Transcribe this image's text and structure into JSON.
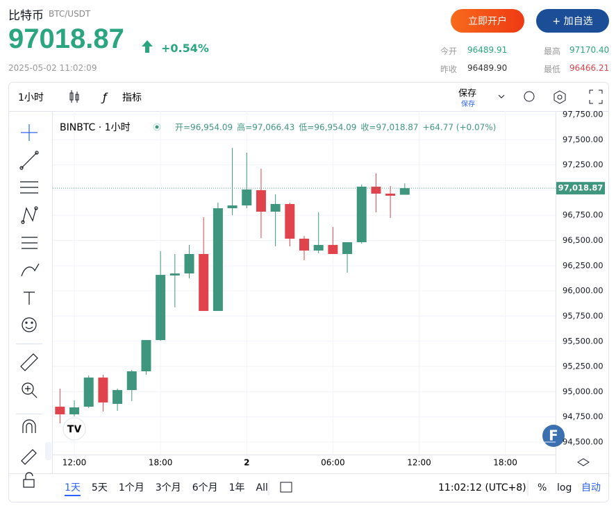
{
  "header": {
    "name": "比特币",
    "pair": "BTC/USDT",
    "price": "97018.87",
    "change": "+0.54%",
    "time": "2025-05-02 11:02:09",
    "btn_open": "立即开户",
    "btn_watch": "+ 加自选",
    "stats": [
      [
        "今开",
        "96489.91"
      ],
      [
        "最高",
        "97170.40"
      ],
      [
        "昨收",
        "96489.90"
      ],
      [
        "最低",
        "96466.21"
      ]
    ]
  },
  "toolbar": {
    "interval": "1小时",
    "indicators": "指标",
    "save": "保存",
    "save_sub": "保存"
  },
  "legend": {
    "symbol": "BINBTC · 1小时",
    "open": "开=96,954.09",
    "high": "高=97,066.43",
    "low": "低=96,954.09",
    "close": "收=97,018.87",
    "change": "+64.77 (+0.07%)"
  },
  "bottom": {
    "ranges": [
      "1天",
      "5天",
      "1个月",
      "3个月",
      "6个月",
      "1年",
      "All"
    ],
    "clock": "11:02:12 (UTC+8)",
    "pct": "%",
    "log": "log",
    "auto": "自动"
  },
  "chart_data": {
    "type": "candlestick",
    "categories": [
      null,
      "12:00",
      null,
      null,
      null,
      null,
      null,
      "18:00",
      null,
      null,
      null,
      null,
      null,
      "2",
      null,
      null,
      null,
      null,
      null,
      "06:00",
      null,
      null,
      null,
      null,
      null,
      "12:00",
      null,
      null,
      null,
      null,
      null,
      "18:00",
      null,
      null,
      null
    ],
    "open": [
      94851,
      94775,
      94851,
      95140,
      94879,
      95016,
      95202,
      95512,
      96153,
      96173,
      96366,
      95801,
      96820,
      96848,
      96999,
      96786,
      96862,
      96518,
      96400,
      96456,
      96366,
      96483,
      97034,
      96965,
      96954.09,
      null,
      null,
      null,
      null,
      null,
      null,
      null,
      null,
      null,
      null
    ],
    "high": [
      95030,
      94913,
      95161,
      95168,
      95030,
      95216,
      95512,
      96394,
      96366,
      96456,
      96731,
      96876,
      97419,
      97371,
      97213,
      96958,
      96876,
      96545,
      96779,
      96635,
      96483,
      97055,
      97165,
      97041,
      97066.43,
      null,
      null,
      null,
      null,
      null,
      null,
      null,
      null,
      null,
      null
    ],
    "low": [
      94686,
      94755,
      94837,
      94803,
      94810,
      94906,
      95168,
      95505,
      95836,
      96125,
      95801,
      95801,
      96752,
      96820,
      96524,
      96442,
      96442,
      96304,
      96373,
      96366,
      96180,
      96469,
      96779,
      96724,
      96954.09,
      null,
      null,
      null,
      null,
      null,
      null,
      null,
      null,
      null,
      null
    ],
    "close": [
      94775,
      94844,
      95140,
      94893,
      95016,
      95202,
      95512,
      96159,
      96173,
      96366,
      95801,
      96820,
      96848,
      97006,
      96786,
      96862,
      96518,
      96400,
      96456,
      96366,
      96483,
      97034,
      96965,
      96944,
      97018.87,
      null,
      null,
      null,
      null,
      null,
      null,
      null,
      null,
      null,
      null
    ],
    "up_color": "#3f967f",
    "down_color": "#e0434c",
    "last_label": "97,018.87",
    "ylim": [
      94500,
      97750
    ],
    "yticks": [
      {
        "value": 94500,
        "label": "94,500.00"
      },
      {
        "value": 94750,
        "label": "94,750.00"
      },
      {
        "value": 95000,
        "label": "95,000.00"
      },
      {
        "value": 95250,
        "label": "95,250.00"
      },
      {
        "value": 95500,
        "label": "95,500.00"
      },
      {
        "value": 95750,
        "label": "95,750.00"
      },
      {
        "value": 96000,
        "label": "96,000.00"
      },
      {
        "value": 96250,
        "label": "96,250.00"
      },
      {
        "value": 96500,
        "label": "96,500.00"
      },
      {
        "value": 96750,
        "label": "96,750.00"
      },
      {
        "value": 97000,
        "label": "97,000.00"
      },
      {
        "value": 97250,
        "label": "97,250.00"
      },
      {
        "value": 97500,
        "label": "97,500.00"
      },
      {
        "value": 97750,
        "label": "97,750.00"
      }
    ],
    "grid": true
  }
}
